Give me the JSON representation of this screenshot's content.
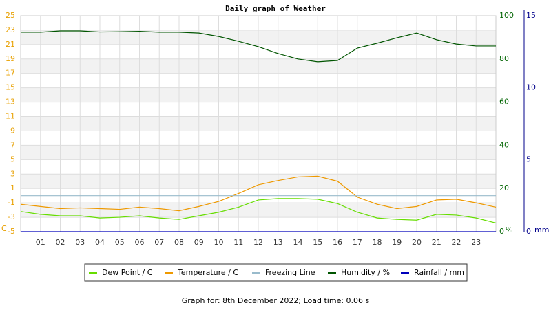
{
  "chart_data": {
    "type": "line",
    "title": "Daily graph of Weather",
    "x": [
      0,
      1,
      2,
      3,
      4,
      5,
      6,
      7,
      8,
      9,
      10,
      11,
      12,
      13,
      14,
      15,
      16,
      17,
      18,
      19,
      20,
      21,
      22,
      23,
      24
    ],
    "xlim": [
      0,
      24
    ],
    "xticks": [
      {
        "value": 1,
        "label": "01"
      },
      {
        "value": 2,
        "label": "02"
      },
      {
        "value": 3,
        "label": "03"
      },
      {
        "value": 4,
        "label": "04"
      },
      {
        "value": 5,
        "label": "05"
      },
      {
        "value": 6,
        "label": "06"
      },
      {
        "value": 7,
        "label": "07"
      },
      {
        "value": 8,
        "label": "08"
      },
      {
        "value": 9,
        "label": "09"
      },
      10,
      11,
      12,
      13,
      14,
      15,
      16,
      17,
      18,
      19,
      20,
      21,
      22,
      23
    ],
    "ylim": [
      -5,
      25
    ],
    "yticks": [
      -5,
      -3,
      -1,
      1,
      3,
      5,
      7,
      9,
      11,
      13,
      15,
      17,
      19,
      21,
      23,
      25
    ],
    "y_label": "C",
    "y2lim": [
      0,
      100
    ],
    "y2ticks": [
      0,
      20,
      40,
      60,
      80,
      100
    ],
    "y2_label": "%",
    "y3lim": [
      0,
      15
    ],
    "y3ticks": [
      0,
      5,
      10,
      15
    ],
    "y3_label": "mm",
    "grid": true,
    "series": [
      {
        "name": "Dew Point / C",
        "color": "#66dd00",
        "values": [
          -2.2,
          -2.6,
          -2.8,
          -2.8,
          -3.1,
          -3.0,
          -2.8,
          -3.1,
          -3.3,
          -2.8,
          -2.3,
          -1.6,
          -0.6,
          -0.4,
          -0.4,
          -0.5,
          -1.1,
          -2.3,
          -3.1,
          -3.3,
          -3.4,
          -2.6,
          -2.7,
          -3.1,
          -3.8
        ]
      },
      {
        "name": "Temperature / C",
        "color": "#ee9900",
        "values": [
          -1.2,
          -1.5,
          -1.8,
          -1.7,
          -1.8,
          -1.9,
          -1.6,
          -1.8,
          -2.1,
          -1.5,
          -0.8,
          0.3,
          1.5,
          2.1,
          2.6,
          2.7,
          2.0,
          -0.2,
          -1.2,
          -1.8,
          -1.5,
          -0.6,
          -0.5,
          -1.0,
          -1.6
        ]
      },
      {
        "name": "Freezing Line",
        "color": "#99bbcc",
        "values": [
          0,
          0,
          0,
          0,
          0,
          0,
          0,
          0,
          0,
          0,
          0,
          0,
          0,
          0,
          0,
          0,
          0,
          0,
          0,
          0,
          0,
          0,
          0,
          0,
          0
        ]
      },
      {
        "name": "Humidity / %",
        "color": "#005500",
        "axis": "y2",
        "values": [
          92.4,
          92.4,
          93,
          93,
          92.5,
          92.6,
          92.8,
          92.4,
          92.4,
          92,
          90.4,
          88.2,
          85.7,
          82.5,
          80,
          78.7,
          79.3,
          85,
          87.3,
          89.8,
          92,
          88.9,
          86.9,
          86,
          86
        ]
      },
      {
        "name": "Rainfall / mm",
        "color": "#0000bb",
        "axis": "y3",
        "values": [
          0,
          0,
          0,
          0,
          0,
          0,
          0,
          0,
          0,
          0,
          0,
          0,
          0,
          0,
          0,
          0,
          0,
          0,
          0,
          0,
          0,
          0,
          0,
          0,
          0
        ]
      }
    ],
    "footer": "Graph for: 8th December 2022; Load time: 0.06 s"
  }
}
